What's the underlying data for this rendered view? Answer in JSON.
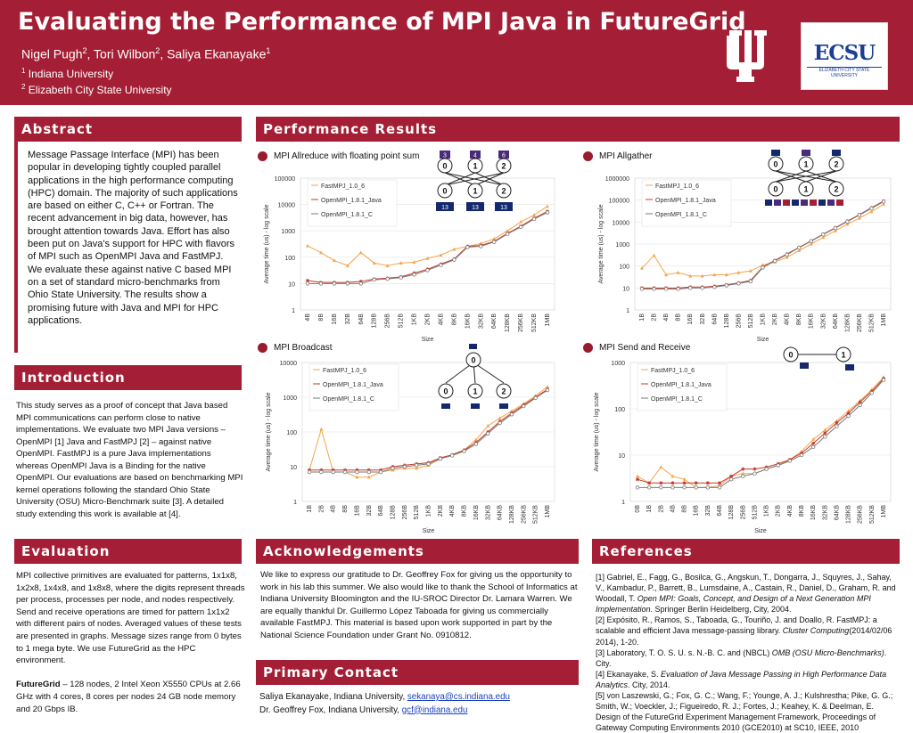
{
  "header": {
    "title": "Evaluating the Performance of MPI Java in FutureGrid",
    "authors_pre": "Nigel Pugh",
    "sup1": "2",
    "authors_mid": ", Tori Wilbon",
    "sup2": "2",
    "authors_post": ", Saliya Ekanayake",
    "sup3": "1",
    "aff1_sup": "1",
    "aff1": "Indiana University",
    "aff2_sup": "2",
    "aff2": "Elizabeth City State University",
    "ecsu_logo": "ECSU",
    "ecsu_sub": "ELIZABETH CITY STATE UNIVERSITY"
  },
  "sections": {
    "abstract": "Abstract",
    "introduction": "Introduction",
    "evaluation": "Evaluation",
    "performance": "Performance Results",
    "acknowledgements": "Acknowledgements",
    "primary_contact": "Primary Contact",
    "references": "References"
  },
  "abstract_text": "Message Passage Interface (MPI) has been popular in developing tightly coupled parallel applications in the high performance computing (HPC) domain. The majority of such applications are based on either C, C++ or Fortran. The recent advancement in big data, however, has brought attention towards Java. Effort has also been put on Java's support for HPC with flavors of MPI such as OpenMPI Java and FastMPJ. We evaluate these against native C based MPI on a set of standard micro-benchmarks from Ohio State University. The results show a promising future with Java and MPI for HPC applications.",
  "introduction_text": "This study serves as a proof of concept that Java based MPI communications can perform close to native implementations. We evaluate two MPI Java versions – OpenMPI [1] Java and FastMPJ [2] – against native OpenMPI. FastMPJ is a pure Java implementations whereas OpenMPI Java is a Binding for the native OpenMPI. Our evaluations are based on benchmarking MPI kernel operations following the standard Ohio State University (OSU) Micro-Benchmark suite [3]. A detailed study extending this work is available at [4].",
  "evaluation_text": "MPI collective primitives are evaluated for patterns, 1x1x8, 1x2x8, 1x4x8, and 1x8x8, where the digits represent threads per process, processes per node, and nodes respectively. Send and receive operations are timed for pattern 1x1x2 with different pairs of nodes. Averaged values of these tests are presented in graphs. Message sizes range from 0 bytes to 1 mega byte. We use FutureGrid as the HPC environment.",
  "evaluation_bold": "FutureGrid",
  "evaluation_text2": " – 128 nodes, 2 Intel Xeon X5550 CPUs at 2.66 GHz with 4 cores, 8 cores per nodes 24 GB node memory and 20 Gbps IB.",
  "acknowledgements_text": "We like to express our gratitude to Dr. Geoffrey Fox for giving us the opportunity to work in his lab this summer. We also would like to thank the School of Informatics at Indiana University Bloomington and the IU-SROC Director Dr. Lamara Warren. We are equally thankful Dr. Guillermo López Taboada for giving us commercially available FastMPJ. This material is based upon work supported in part by the National Science Foundation under Grant No. 0910812.",
  "contact": {
    "line1": "Saliya Ekanayake, Indiana University, ",
    "email1": "sekanaya@cs.indiana.edu",
    "line2": "Dr. Geoffrey Fox, Indiana University, ",
    "email2": "gcf@indiana.edu"
  },
  "references": [
    {
      "pre": "[1] Gabriel, E., Fagg, G., Bosilca, G., Angskun, T., Dongarra, J., Squyres, J., Sahay, V., Kambadur, P., Barrett, B., Lumsdaine, A., Castain, R., Daniel, D., Graham, R. and Woodall, T. ",
      "it": "Open MPI: Goals, Concept, and Design of a Next Generation MPI Implementation",
      "post": ". Springer Berlin Heidelberg, City, 2004."
    },
    {
      "pre": "[2] Expósito, R., Ramos, S., Taboada, G., Touriño, J. and Doallo, R. FastMPJ: a scalable and efficient Java message-passing library. ",
      "it": "Cluster Computing",
      "post": "(2014/02/06 2014), 1-20."
    },
    {
      "pre": "[3] Laboratory, T. O. S. U. s. N.-B. C. and (NBCL) ",
      "it": "OMB (OSU Micro-Benchmarks)",
      "post": ". City."
    },
    {
      "pre": "[4] Ekanayake, S. ",
      "it": "Evaluation of Java Message Passing in High Performance Data Analytics",
      "post": ". City, 2014."
    },
    {
      "pre": "[5] von Laszewski, G.; Fox, G. C.; Wang, F.; Younge, A. J.; Kulshrestha; Pike, G. G.; Smith, W.; Voeckler, J.; Figueiredo, R. J.; Fortes, J.; Keahey, K. & Deelman, E. Design of the FutureGrid Experiment Management Framework, Proceedings of Gateway Computing Environments 2010 (GCE2010) at SC10, IEEE, 2010",
      "it": "",
      "post": ""
    }
  ],
  "colors": {
    "brand": "#a41f35",
    "fast": "#f5a44c",
    "ompi_java": "#c33a2b",
    "ompi_c": "#7a7a7a"
  },
  "chart_data": [
    {
      "type": "line",
      "title": "MPI Allreduce with floating point sum",
      "xlabel": "Size",
      "ylabel": "Average time (us) - log scale",
      "yscale": "log",
      "ylim": [
        1,
        100000
      ],
      "yticks": [
        "1",
        "10",
        "100",
        "1000",
        "10000",
        "100000"
      ],
      "categories": [
        "4B",
        "8B",
        "16B",
        "32B",
        "64B",
        "128B",
        "256B",
        "512B",
        "1KB",
        "2KB",
        "4KB",
        "8KB",
        "16KB",
        "32KB",
        "64KB",
        "128KB",
        "256KB",
        "512KB",
        "1MB"
      ],
      "legend": "top-left",
      "diagram": {
        "top_labels": [
          "3",
          "4",
          "6"
        ],
        "nodes": [
          "0",
          "1",
          "2"
        ],
        "bottom_labels": [
          "13",
          "13",
          "13"
        ]
      },
      "series": [
        {
          "name": "FastMPJ_1.0_6",
          "marker": "triangle",
          "values": [
            270,
            150,
            75,
            48,
            150,
            60,
            48,
            60,
            65,
            90,
            120,
            200,
            260,
            330,
            500,
            1000,
            2200,
            4000,
            8500
          ]
        },
        {
          "name": "OpenMPI_1.8.1_Java",
          "marker": "star",
          "values": [
            13,
            11,
            11,
            11,
            12,
            15,
            16,
            18,
            25,
            35,
            55,
            85,
            260,
            280,
            400,
            800,
            1500,
            3000,
            5500
          ]
        },
        {
          "name": "OpenMPI_1.8.1_C",
          "marker": "circle",
          "values": [
            10,
            10,
            10,
            10,
            10,
            14,
            15,
            17,
            22,
            32,
            50,
            80,
            240,
            260,
            380,
            760,
            1400,
            2800,
            5000
          ]
        }
      ]
    },
    {
      "type": "line",
      "title": "MPI Allgather",
      "xlabel": "Size",
      "ylabel": "Average time (us) - log scale",
      "yscale": "log",
      "ylim": [
        1,
        1000000
      ],
      "yticks": [
        "1",
        "10",
        "100",
        "1000",
        "10000",
        "100000",
        "1000000"
      ],
      "categories": [
        "1B",
        "2B",
        "4B",
        "8B",
        "16B",
        "32B",
        "64B",
        "128B",
        "256B",
        "512B",
        "1KB",
        "2KB",
        "4KB",
        "8KB",
        "16KB",
        "32KB",
        "64KB",
        "128KB",
        "256KB",
        "512KB",
        "1MB"
      ],
      "legend": "top-left",
      "diagram": {
        "nodes": [
          "0",
          "1",
          "2"
        ]
      },
      "series": [
        {
          "name": "FastMPJ_1.0_6",
          "marker": "triangle",
          "values": [
            80,
            300,
            40,
            50,
            35,
            35,
            40,
            40,
            50,
            60,
            110,
            150,
            250,
            500,
            1000,
            2000,
            4000,
            8000,
            15000,
            30000,
            65000
          ]
        },
        {
          "name": "OpenMPI_1.8.1_Java",
          "marker": "star",
          "values": [
            10,
            10,
            10,
            10,
            11,
            11,
            12,
            14,
            17,
            22,
            90,
            180,
            350,
            700,
            1400,
            2800,
            5500,
            11000,
            22000,
            45000,
            90000
          ]
        },
        {
          "name": "OpenMPI_1.8.1_C",
          "marker": "circle",
          "values": [
            9,
            9,
            9,
            9,
            10,
            10,
            11,
            13,
            16,
            20,
            85,
            170,
            330,
            680,
            1350,
            2700,
            5300,
            10500,
            21000,
            42000,
            85000
          ]
        }
      ]
    },
    {
      "type": "line",
      "title": "MPI Broadcast",
      "xlabel": "Size",
      "ylabel": "Average time (us) - log scale",
      "yscale": "log",
      "ylim": [
        1,
        10000
      ],
      "yticks": [
        "1",
        "10",
        "100",
        "1000",
        "10000"
      ],
      "categories": [
        "1B",
        "2B",
        "4B",
        "8B",
        "16B",
        "32B",
        "64B",
        "128B",
        "256B",
        "512B",
        "1KB",
        "2KB",
        "4KB",
        "8KB",
        "16KB",
        "32KB",
        "64KB",
        "128KB",
        "256KB",
        "512KB",
        "1MB"
      ],
      "legend": "top-left",
      "diagram": {
        "nodes": [
          "0",
          "0",
          "1",
          "2"
        ]
      },
      "series": [
        {
          "name": "FastMPJ_1.0_6",
          "marker": "triangle",
          "values": [
            8,
            120,
            7,
            7,
            5,
            5,
            7,
            8,
            9,
            9,
            11,
            17,
            22,
            30,
            60,
            150,
            250,
            400,
            650,
            1100,
            2000
          ]
        },
        {
          "name": "OpenMPI_1.8.1_Java",
          "marker": "star",
          "values": [
            8,
            8,
            8,
            8,
            8,
            8,
            8,
            10,
            11,
            12,
            13,
            18,
            22,
            30,
            50,
            100,
            200,
            350,
            600,
            1000,
            1700
          ]
        },
        {
          "name": "OpenMPI_1.8.1_C",
          "marker": "circle",
          "values": [
            7,
            7,
            7,
            7,
            7,
            7,
            7,
            9,
            10,
            11,
            12,
            17,
            21,
            28,
            45,
            90,
            180,
            320,
            550,
            950,
            1600
          ]
        }
      ]
    },
    {
      "type": "line",
      "title": "MPI Send and Receive",
      "xlabel": "Size",
      "ylabel": "Average time (us) - log scale",
      "yscale": "log",
      "ylim": [
        1,
        1000
      ],
      "yticks": [
        "1",
        "10",
        "100",
        "1000"
      ],
      "categories": [
        "0B",
        "1B",
        "2B",
        "4B",
        "8B",
        "16B",
        "32B",
        "64B",
        "128B",
        "256B",
        "512B",
        "1KB",
        "2KB",
        "4KB",
        "8KB",
        "16KB",
        "32KB",
        "64KB",
        "128KB",
        "256KB",
        "512KB",
        "1MB"
      ],
      "legend": "top-left",
      "diagram": {
        "nodes": [
          "0",
          "1"
        ]
      },
      "series": [
        {
          "name": "FastMPJ_1.0_6",
          "marker": "triangle",
          "values": [
            3.5,
            2.5,
            5.5,
            3.5,
            3,
            2,
            2,
            2.2,
            3.5,
            4,
            4,
            5,
            6,
            8,
            12,
            22,
            35,
            55,
            90,
            150,
            260,
            480
          ]
        },
        {
          "name": "OpenMPI_1.8.1_Java",
          "marker": "star",
          "values": [
            3,
            2.5,
            2.5,
            2.5,
            2.5,
            2.5,
            2.5,
            2.5,
            3.5,
            5,
            5,
            5.5,
            6.5,
            8,
            11,
            18,
            30,
            50,
            80,
            140,
            240,
            450
          ]
        },
        {
          "name": "OpenMPI_1.8.1_C",
          "marker": "circle",
          "values": [
            2,
            2,
            2,
            2,
            2,
            2,
            2,
            2,
            3,
            3.5,
            4,
            5,
            6,
            7.5,
            10,
            15,
            25,
            42,
            70,
            120,
            220,
            420
          ]
        }
      ]
    }
  ]
}
